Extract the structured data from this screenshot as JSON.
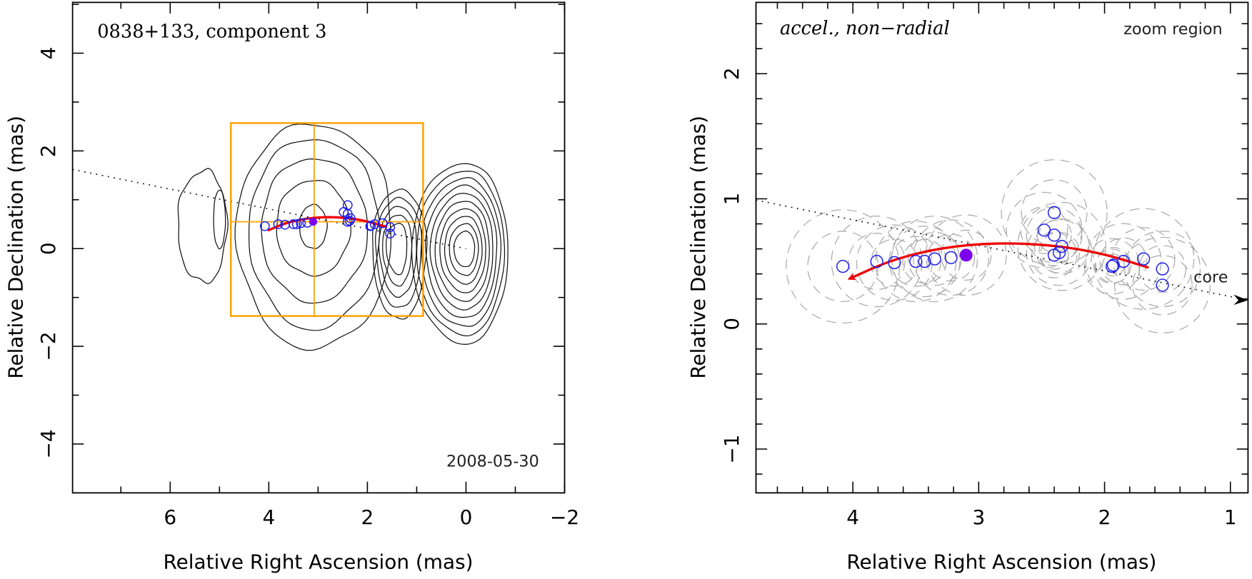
{
  "chart_data": [
    {
      "type": "scatter",
      "panel": "overview",
      "title": "0838+133, component 3",
      "date_label": "2008-05-30",
      "xlabel": "Relative Right Ascension (mas)",
      "ylabel": "Relative Declination (mas)",
      "xlim": [
        7.98,
        -2.0
      ],
      "ylim": [
        -5.0,
        5.04
      ],
      "xticks": [
        6,
        4,
        2,
        0,
        -2
      ],
      "xtick_labels": [
        "6",
        "4",
        "2",
        "0",
        "−2"
      ],
      "xminor_step": 1,
      "yticks": [
        4,
        2,
        0,
        -2,
        -4
      ],
      "ytick_labels": [
        "4",
        "2",
        "0",
        "−2",
        "−4"
      ],
      "yminor_step": 1,
      "grid": false,
      "core_direction_line": {
        "from": [
          7.98,
          1.62
        ],
        "to": [
          0,
          0
        ]
      },
      "zoom_box": {
        "ra_range": [
          4.77,
          0.87
        ],
        "dec_range": [
          -1.38,
          2.57
        ],
        "crosshair": [
          3.08,
          0.55
        ],
        "color": "#ffa200"
      },
      "contours": [
        {
          "center": [
            0.0,
            0.02
          ],
          "levels": [
            {
              "rx": [
                0.45,
                0.18
              ],
              "ry": [
                0.45,
                0.35
              ]
            },
            {
              "rx": [
                1.45,
                0.55
              ],
              "ry": [
                0.95,
                0.75
              ]
            }
          ]
        },
        {
          "center": [
            3.08,
            0.55
          ],
          "levels": [
            {
              "rx": [
                0.45,
                0.5
              ],
              "ry": [
                0.45,
                0.42
              ]
            },
            {
              "rx": [
                1.05,
                1.0
              ],
              "ry": [
                1.0,
                0.82
              ]
            }
          ]
        }
      ],
      "contour_levels": 10,
      "observations": [
        {
          "ra": 4.08,
          "dec": 0.46
        },
        {
          "ra": 3.81,
          "dec": 0.5
        },
        {
          "ra": 3.67,
          "dec": 0.49
        },
        {
          "ra": 3.5,
          "dec": 0.5
        },
        {
          "ra": 3.43,
          "dec": 0.5
        },
        {
          "ra": 3.35,
          "dec": 0.52
        },
        {
          "ra": 3.22,
          "dec": 0.53
        },
        {
          "ra": 2.4,
          "dec": 0.89
        },
        {
          "ra": 2.48,
          "dec": 0.75
        },
        {
          "ra": 2.4,
          "dec": 0.71
        },
        {
          "ra": 2.34,
          "dec": 0.62
        },
        {
          "ra": 2.4,
          "dec": 0.55
        },
        {
          "ra": 2.36,
          "dec": 0.57
        },
        {
          "ra": 1.94,
          "dec": 0.46
        },
        {
          "ra": 1.93,
          "dec": 0.47
        },
        {
          "ra": 1.85,
          "dec": 0.5
        },
        {
          "ra": 1.69,
          "dec": 0.52
        },
        {
          "ra": 1.54,
          "dec": 0.44
        },
        {
          "ra": 1.54,
          "dec": 0.31
        }
      ],
      "current_epoch": {
        "ra": 3.1,
        "dec": 0.55
      },
      "fit_track": [
        [
          1.6,
          0.44
        ],
        [
          2.0,
          0.56
        ],
        [
          2.4,
          0.63
        ],
        [
          2.86,
          0.65
        ],
        [
          3.3,
          0.61
        ],
        [
          3.7,
          0.51
        ],
        [
          4.02,
          0.37
        ]
      ]
    },
    {
      "type": "scatter",
      "panel": "zoom",
      "title": "accel., non−radial",
      "corner_label": "zoom region",
      "core_label": "core",
      "xlabel": "Relative Right Ascension (mas)",
      "ylabel": "Relative Declination (mas)",
      "xlim": [
        4.77,
        0.86
      ],
      "ylim": [
        -1.35,
        2.57
      ],
      "xticks": [
        4,
        3,
        2,
        1
      ],
      "xtick_labels": [
        "4",
        "3",
        "2",
        "1"
      ],
      "xminor_step": 0.2,
      "yticks": [
        2,
        1,
        0,
        -1
      ],
      "ytick_labels": [
        "2",
        "1",
        "0",
        "−1"
      ],
      "yminor_step": 0.2,
      "grid": false,
      "core_direction_line": {
        "from": [
          4.77,
          0.99
        ],
        "to": [
          0.86,
          0.19
        ]
      },
      "observations": [
        {
          "ra": 4.08,
          "dec": 0.46,
          "err": 0.45
        },
        {
          "ra": 3.81,
          "dec": 0.5,
          "err": 0.36
        },
        {
          "ra": 3.67,
          "dec": 0.49,
          "err": 0.3
        },
        {
          "ra": 3.5,
          "dec": 0.5,
          "err": 0.32
        },
        {
          "ra": 3.43,
          "dec": 0.5,
          "err": 0.28
        },
        {
          "ra": 3.35,
          "dec": 0.52,
          "err": 0.34
        },
        {
          "ra": 3.22,
          "dec": 0.53,
          "err": 0.3
        },
        {
          "ra": 2.4,
          "dec": 0.89,
          "err": 0.42
        },
        {
          "ra": 2.48,
          "dec": 0.75,
          "err": 0.3
        },
        {
          "ra": 2.4,
          "dec": 0.71,
          "err": 0.22
        },
        {
          "ra": 2.34,
          "dec": 0.62,
          "err": 0.35
        },
        {
          "ra": 2.4,
          "dec": 0.55,
          "err": 0.18
        },
        {
          "ra": 2.36,
          "dec": 0.57,
          "err": 0.26
        },
        {
          "ra": 1.94,
          "dec": 0.46,
          "err": 0.22
        },
        {
          "ra": 1.93,
          "dec": 0.47,
          "err": 0.14
        },
        {
          "ra": 1.85,
          "dec": 0.5,
          "err": 0.3
        },
        {
          "ra": 1.69,
          "dec": 0.52,
          "err": 0.4
        },
        {
          "ra": 1.54,
          "dec": 0.44,
          "err": 0.3
        },
        {
          "ra": 1.54,
          "dec": 0.31,
          "err": 0.38
        }
      ],
      "current_epoch": {
        "ra": 3.1,
        "dec": 0.55,
        "err": 0.32
      },
      "fit_track": [
        [
          1.65,
          0.45
        ],
        [
          2.0,
          0.56
        ],
        [
          2.4,
          0.63
        ],
        [
          2.86,
          0.65
        ],
        [
          3.3,
          0.61
        ],
        [
          3.7,
          0.51
        ],
        [
          4.03,
          0.36
        ]
      ],
      "colors": {
        "observation": "#1a1aee",
        "current_epoch": "#7a00ee",
        "fit": "#ee0000",
        "error_circle": "#aaaaaa"
      }
    }
  ]
}
